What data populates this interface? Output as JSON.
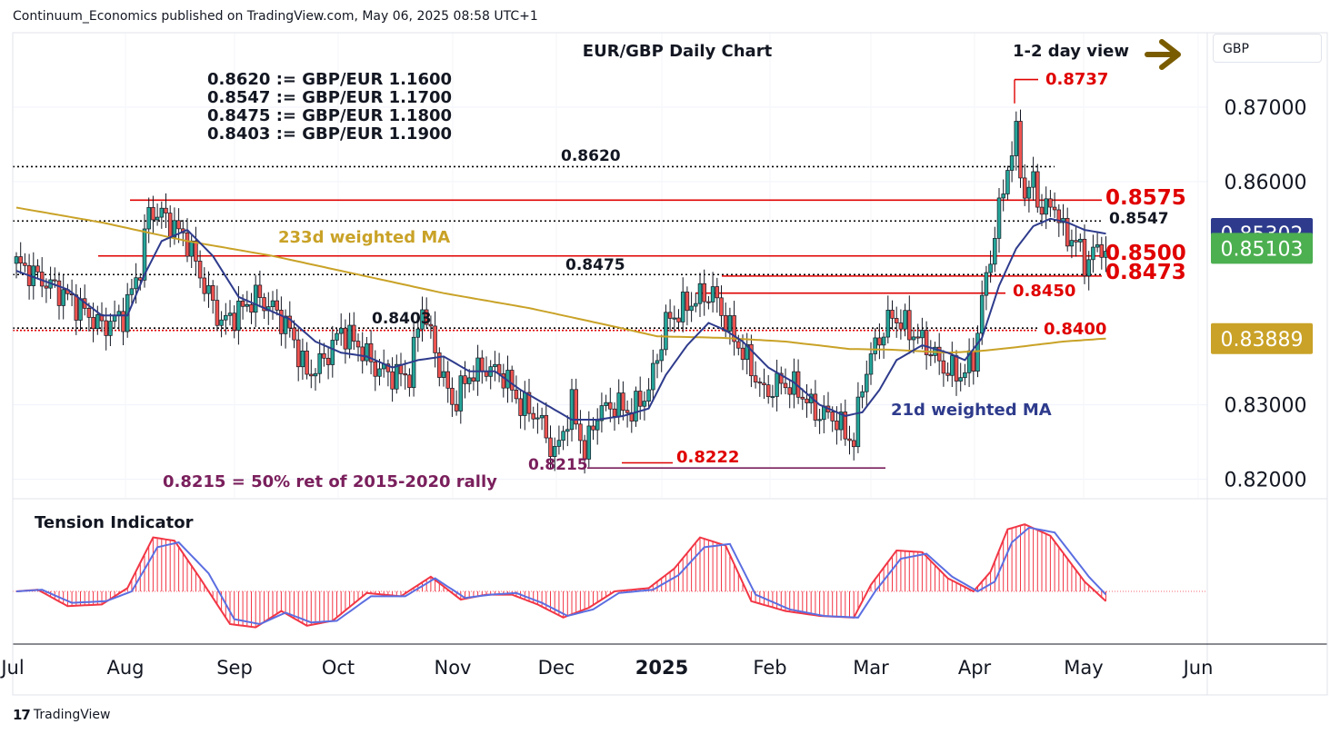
{
  "header": {
    "publisher_line": "Continuum_Economics published on TradingView.com, May 06, 2025 08:58 UTC+1",
    "chart_title": "EUR/GBP Daily Chart",
    "view_label": "1-2 day view",
    "currency": "GBP"
  },
  "footer": {
    "brand": "TradingView",
    "brand_mark": "17"
  },
  "colors": {
    "up": "#26a69a",
    "down": "#ef5350",
    "ma21": "#2e3b8c",
    "ma233": "#c9a227",
    "level_red": "#e00000",
    "level_black": "#000000",
    "ret_line": "#7a1f5c",
    "arrow": "#7a5c00",
    "tension_fast": "#f23645",
    "tension_slow": "#5b6ee1"
  },
  "conversion_notes": [
    "0.8620 := GBP/EUR 1.1600",
    "0.8547 := GBP/EUR 1.1700",
    "0.8475 := GBP/EUR 1.1800",
    "0.8403 := GBP/EUR 1.1900"
  ],
  "chart_data": {
    "type": "candlestick",
    "title": "EUR/GBP Daily Chart",
    "x_axis": {
      "labels": [
        "Jul",
        "Aug",
        "Sep",
        "Oct",
        "Nov",
        "Dec",
        "2025",
        "Feb",
        "Mar",
        "Apr",
        "May",
        "Jun"
      ]
    },
    "y_axis": {
      "ticks": [
        "0.87000",
        "0.86000",
        "0.83000",
        "0.82000"
      ],
      "range": [
        0.8175,
        0.88
      ]
    },
    "price_badges": [
      {
        "label": "0.85302",
        "value": 0.85302,
        "bg": "#2e3b8c"
      },
      {
        "label": "0.85103",
        "value": 0.85103,
        "bg": "#4caf50"
      },
      {
        "label": "0.83889",
        "value": 0.83889,
        "bg": "#c9a227"
      }
    ],
    "levels": [
      {
        "label": "0.8737",
        "value": 0.8737,
        "style": "red-solid",
        "size": "large"
      },
      {
        "label": "0.8620",
        "value": 0.862,
        "style": "black-dotted",
        "size": "small"
      },
      {
        "label": "0.8575",
        "value": 0.8575,
        "style": "red-solid",
        "size": "xlarge"
      },
      {
        "label": "0.8547",
        "value": 0.8547,
        "style": "black-dotted",
        "size": "small"
      },
      {
        "label": "0.8500",
        "value": 0.85,
        "style": "red-solid",
        "size": "xlarge"
      },
      {
        "label": "0.8475",
        "value": 0.8475,
        "style": "black-dotted",
        "size": "small"
      },
      {
        "label": "0.8473",
        "value": 0.8473,
        "style": "red-solid",
        "size": "xlarge"
      },
      {
        "label": "0.8450",
        "value": 0.845,
        "style": "red-solid",
        "size": "large"
      },
      {
        "label": "0.8403",
        "value": 0.8403,
        "style": "black-dotted",
        "size": "small"
      },
      {
        "label": "0.8400",
        "value": 0.84,
        "style": "red-dotted",
        "size": "large"
      },
      {
        "label": "0.8222",
        "value": 0.8222,
        "style": "red-solid",
        "size": "large"
      },
      {
        "label": "0.8215",
        "value": 0.8215,
        "style": "purple-solid",
        "size": "medium"
      }
    ],
    "annotations": {
      "ma233_label": "233d weighted MA",
      "ma21_label": "21d weighted MA",
      "retracement_note": "0.8215 = 50% ret of 2015-2020 rally",
      "indicator_title": "Tension Indicator"
    },
    "close_anchors": [
      [
        0,
        0.849
      ],
      [
        12,
        0.8445
      ],
      [
        20,
        0.8405
      ],
      [
        25,
        0.842
      ],
      [
        29,
        0.8485
      ],
      [
        31,
        0.856
      ],
      [
        34,
        0.8555
      ],
      [
        36,
        0.8545
      ],
      [
        40,
        0.852
      ],
      [
        44,
        0.846
      ],
      [
        48,
        0.841
      ],
      [
        52,
        0.8425
      ],
      [
        56,
        0.8445
      ],
      [
        60,
        0.843
      ],
      [
        64,
        0.84
      ],
      [
        68,
        0.834
      ],
      [
        72,
        0.836
      ],
      [
        76,
        0.84
      ],
      [
        80,
        0.838
      ],
      [
        84,
        0.835
      ],
      [
        88,
        0.834
      ],
      [
        92,
        0.834
      ],
      [
        95,
        0.8435
      ],
      [
        98,
        0.837
      ],
      [
        102,
        0.83
      ],
      [
        106,
        0.834
      ],
      [
        110,
        0.835
      ],
      [
        114,
        0.834
      ],
      [
        118,
        0.83
      ],
      [
        122,
        0.8285
      ],
      [
        126,
        0.8232
      ],
      [
        130,
        0.83
      ],
      [
        133,
        0.8235
      ],
      [
        136,
        0.829
      ],
      [
        140,
        0.83
      ],
      [
        144,
        0.829
      ],
      [
        148,
        0.832
      ],
      [
        152,
        0.841
      ],
      [
        156,
        0.843
      ],
      [
        160,
        0.8445
      ],
      [
        163,
        0.845
      ],
      [
        167,
        0.84
      ],
      [
        171,
        0.836
      ],
      [
        175,
        0.8315
      ],
      [
        179,
        0.833
      ],
      [
        183,
        0.832
      ],
      [
        187,
        0.829
      ],
      [
        191,
        0.8285
      ],
      [
        194,
        0.8262
      ],
      [
        196,
        0.825
      ],
      [
        198,
        0.833
      ],
      [
        201,
        0.838
      ],
      [
        205,
        0.842
      ],
      [
        209,
        0.84
      ],
      [
        213,
        0.838
      ],
      [
        217,
        0.835
      ],
      [
        221,
        0.834
      ],
      [
        224,
        0.836
      ],
      [
        226,
        0.844
      ],
      [
        228,
        0.85
      ],
      [
        230,
        0.856
      ],
      [
        232,
        0.862
      ],
      [
        234,
        0.866
      ],
      [
        236,
        0.858
      ],
      [
        238,
        0.86
      ],
      [
        240,
        0.856
      ],
      [
        243,
        0.857
      ],
      [
        245,
        0.853
      ],
      [
        248,
        0.852
      ],
      [
        250,
        0.849
      ],
      [
        253,
        0.851
      ],
      [
        255,
        0.851
      ]
    ],
    "ma21_anchors": [
      [
        0,
        0.848
      ],
      [
        12,
        0.8455
      ],
      [
        20,
        0.842
      ],
      [
        26,
        0.842
      ],
      [
        30,
        0.8475
      ],
      [
        34,
        0.852
      ],
      [
        40,
        0.8535
      ],
      [
        46,
        0.85
      ],
      [
        52,
        0.8445
      ],
      [
        58,
        0.843
      ],
      [
        64,
        0.8415
      ],
      [
        70,
        0.8385
      ],
      [
        76,
        0.837
      ],
      [
        82,
        0.8365
      ],
      [
        88,
        0.835
      ],
      [
        94,
        0.836
      ],
      [
        100,
        0.8365
      ],
      [
        106,
        0.8345
      ],
      [
        112,
        0.8345
      ],
      [
        118,
        0.832
      ],
      [
        124,
        0.83
      ],
      [
        130,
        0.828
      ],
      [
        136,
        0.828
      ],
      [
        142,
        0.8285
      ],
      [
        148,
        0.8295
      ],
      [
        152,
        0.834
      ],
      [
        157,
        0.838
      ],
      [
        162,
        0.841
      ],
      [
        166,
        0.84
      ],
      [
        170,
        0.8385
      ],
      [
        176,
        0.835
      ],
      [
        182,
        0.833
      ],
      [
        188,
        0.83
      ],
      [
        194,
        0.8285
      ],
      [
        198,
        0.829
      ],
      [
        202,
        0.832
      ],
      [
        206,
        0.836
      ],
      [
        212,
        0.838
      ],
      [
        218,
        0.837
      ],
      [
        222,
        0.836
      ],
      [
        226,
        0.839
      ],
      [
        230,
        0.846
      ],
      [
        234,
        0.851
      ],
      [
        238,
        0.854
      ],
      [
        242,
        0.855
      ],
      [
        246,
        0.8545
      ],
      [
        250,
        0.8535
      ],
      [
        255,
        0.853
      ]
    ],
    "ma233_anchors": [
      [
        0,
        0.8565
      ],
      [
        20,
        0.8545
      ],
      [
        40,
        0.852
      ],
      [
        60,
        0.85
      ],
      [
        80,
        0.8475
      ],
      [
        100,
        0.845
      ],
      [
        120,
        0.843
      ],
      [
        140,
        0.8405
      ],
      [
        150,
        0.8392
      ],
      [
        165,
        0.839
      ],
      [
        180,
        0.8385
      ],
      [
        195,
        0.8375
      ],
      [
        205,
        0.8374
      ],
      [
        218,
        0.837
      ],
      [
        225,
        0.8372
      ],
      [
        232,
        0.8376
      ],
      [
        245,
        0.8385
      ],
      [
        255,
        0.8389
      ]
    ],
    "tension_fast_anchors": [
      [
        0,
        0.0
      ],
      [
        5,
        0.05
      ],
      [
        12,
        -0.45
      ],
      [
        20,
        -0.4
      ],
      [
        26,
        0.1
      ],
      [
        32,
        1.65
      ],
      [
        37,
        1.55
      ],
      [
        43,
        0.4
      ],
      [
        50,
        -1.0
      ],
      [
        56,
        -1.1
      ],
      [
        62,
        -0.6
      ],
      [
        68,
        -1.05
      ],
      [
        74,
        -0.9
      ],
      [
        82,
        -0.05
      ],
      [
        90,
        -0.15
      ],
      [
        97,
        0.45
      ],
      [
        104,
        -0.25
      ],
      [
        110,
        -0.1
      ],
      [
        116,
        -0.1
      ],
      [
        122,
        -0.4
      ],
      [
        128,
        -0.8
      ],
      [
        134,
        -0.5
      ],
      [
        140,
        0.0
      ],
      [
        148,
        0.1
      ],
      [
        154,
        0.7
      ],
      [
        160,
        1.65
      ],
      [
        166,
        1.4
      ],
      [
        172,
        -0.3
      ],
      [
        180,
        -0.6
      ],
      [
        188,
        -0.75
      ],
      [
        196,
        -0.8
      ],
      [
        200,
        0.2
      ],
      [
        206,
        1.25
      ],
      [
        212,
        1.2
      ],
      [
        218,
        0.4
      ],
      [
        224,
        0.0
      ],
      [
        228,
        0.6
      ],
      [
        232,
        1.9
      ],
      [
        236,
        2.05
      ],
      [
        242,
        1.7
      ],
      [
        250,
        0.3
      ],
      [
        255,
        -0.3
      ]
    ],
    "tension_slow_anchors": [
      [
        0,
        0.0
      ],
      [
        6,
        0.05
      ],
      [
        13,
        -0.35
      ],
      [
        21,
        -0.3
      ],
      [
        27,
        0.0
      ],
      [
        33,
        1.35
      ],
      [
        38,
        1.5
      ],
      [
        45,
        0.55
      ],
      [
        51,
        -0.85
      ],
      [
        57,
        -1.0
      ],
      [
        63,
        -0.65
      ],
      [
        69,
        -0.95
      ],
      [
        75,
        -0.9
      ],
      [
        83,
        -0.15
      ],
      [
        91,
        -0.15
      ],
      [
        98,
        0.4
      ],
      [
        105,
        -0.2
      ],
      [
        111,
        -0.1
      ],
      [
        117,
        -0.05
      ],
      [
        123,
        -0.35
      ],
      [
        129,
        -0.75
      ],
      [
        135,
        -0.55
      ],
      [
        141,
        -0.05
      ],
      [
        149,
        0.05
      ],
      [
        155,
        0.5
      ],
      [
        161,
        1.35
      ],
      [
        167,
        1.45
      ],
      [
        173,
        -0.1
      ],
      [
        181,
        -0.55
      ],
      [
        189,
        -0.75
      ],
      [
        197,
        -0.8
      ],
      [
        201,
        0.0
      ],
      [
        207,
        1.0
      ],
      [
        213,
        1.15
      ],
      [
        219,
        0.45
      ],
      [
        225,
        0.0
      ],
      [
        229,
        0.3
      ],
      [
        233,
        1.5
      ],
      [
        237,
        1.95
      ],
      [
        243,
        1.8
      ],
      [
        251,
        0.45
      ],
      [
        255,
        -0.1
      ]
    ]
  }
}
